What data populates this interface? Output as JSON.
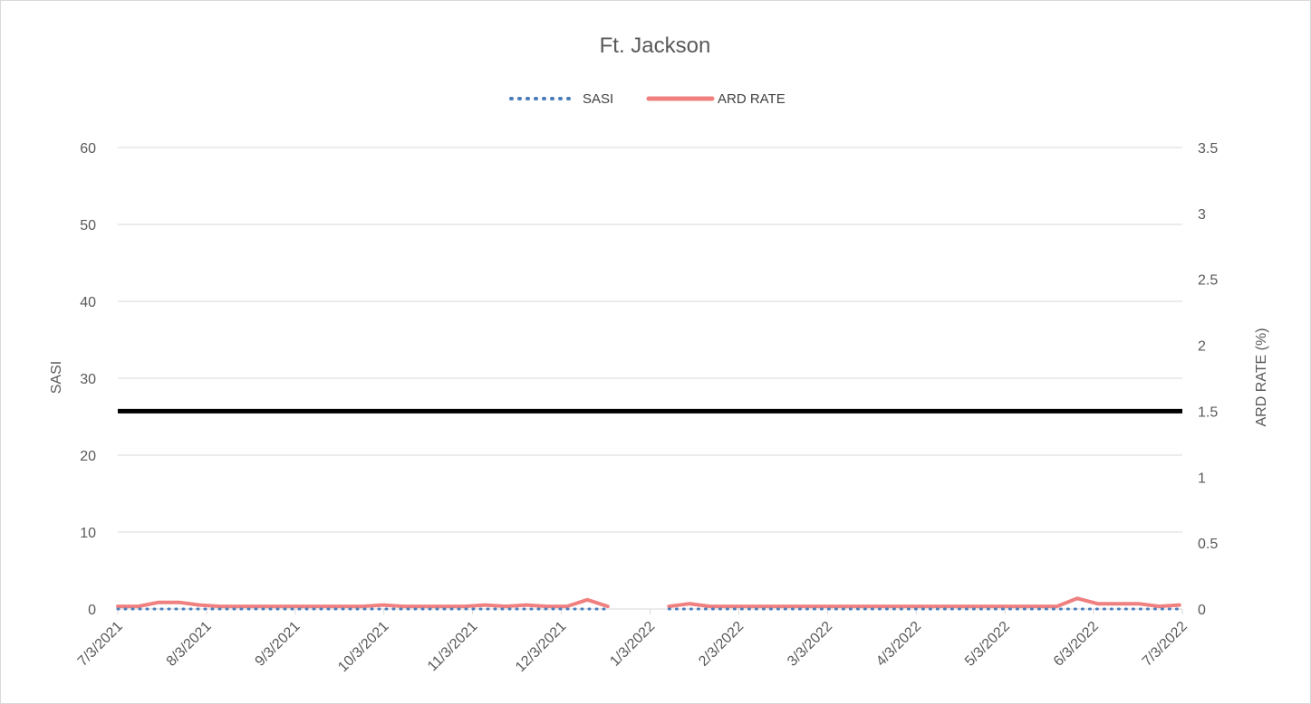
{
  "chart_data": {
    "type": "line",
    "title": "Ft. Jackson",
    "legend_position": "top-center",
    "grid": true,
    "xlabel": "",
    "x_tick_labels": [
      "7/3/2021",
      "8/3/2021",
      "9/3/2021",
      "10/3/2021",
      "11/3/2021",
      "12/3/2021",
      "1/3/2022",
      "2/3/2022",
      "3/3/2022",
      "4/3/2022",
      "5/3/2022",
      "6/3/2022",
      "7/3/2022"
    ],
    "x_range": [
      "2021-07-03",
      "2022-07-03"
    ],
    "y_left": {
      "label": "SASI",
      "range": [
        0,
        60
      ],
      "ticks": [
        0,
        10,
        20,
        30,
        40,
        50,
        60
      ]
    },
    "y_right": {
      "label": "ARD RATE (%)",
      "range": [
        0,
        3.5
      ],
      "ticks": [
        "0",
        "0.5",
        "1",
        "1.5",
        "2",
        "2.5",
        "3",
        "3.5"
      ]
    },
    "reference_line": {
      "axis": "right",
      "value": 1.5,
      "color": "#000000"
    },
    "series": [
      {
        "name": "SASI",
        "axis": "left",
        "style": "dotted",
        "color": "#4a7ebb",
        "points": [
          {
            "x": "2021-07-03",
            "y": 0
          },
          {
            "x": "2021-07-10",
            "y": 0
          },
          {
            "x": "2021-07-17",
            "y": 0
          },
          {
            "x": "2021-07-24",
            "y": 0
          },
          {
            "x": "2021-07-31",
            "y": 0
          },
          {
            "x": "2021-08-07",
            "y": 0
          },
          {
            "x": "2021-08-14",
            "y": 0
          },
          {
            "x": "2021-08-21",
            "y": 0
          },
          {
            "x": "2021-08-28",
            "y": 0
          },
          {
            "x": "2021-09-04",
            "y": 0
          },
          {
            "x": "2021-09-11",
            "y": 0
          },
          {
            "x": "2021-09-18",
            "y": 0
          },
          {
            "x": "2021-09-25",
            "y": 0
          },
          {
            "x": "2021-10-02",
            "y": 0
          },
          {
            "x": "2021-10-09",
            "y": 0
          },
          {
            "x": "2021-10-16",
            "y": 0
          },
          {
            "x": "2021-10-23",
            "y": 0
          },
          {
            "x": "2021-10-30",
            "y": 0
          },
          {
            "x": "2021-11-06",
            "y": 0
          },
          {
            "x": "2021-11-13",
            "y": 0
          },
          {
            "x": "2021-11-20",
            "y": 0
          },
          {
            "x": "2021-11-27",
            "y": 0
          },
          {
            "x": "2021-12-04",
            "y": 0
          },
          {
            "x": "2021-12-11",
            "y": 0
          },
          {
            "x": "2021-12-18",
            "y": 0
          },
          {
            "x": "2022-01-08",
            "y": 0
          },
          {
            "x": "2022-01-15",
            "y": 0
          },
          {
            "x": "2022-01-22",
            "y": 0
          },
          {
            "x": "2022-01-29",
            "y": 0
          },
          {
            "x": "2022-02-05",
            "y": 0
          },
          {
            "x": "2022-02-12",
            "y": 0
          },
          {
            "x": "2022-02-19",
            "y": 0
          },
          {
            "x": "2022-02-26",
            "y": 0
          },
          {
            "x": "2022-03-05",
            "y": 0
          },
          {
            "x": "2022-03-12",
            "y": 0
          },
          {
            "x": "2022-03-19",
            "y": 0
          },
          {
            "x": "2022-03-26",
            "y": 0
          },
          {
            "x": "2022-04-02",
            "y": 0
          },
          {
            "x": "2022-04-09",
            "y": 0
          },
          {
            "x": "2022-04-16",
            "y": 0
          },
          {
            "x": "2022-04-23",
            "y": 0
          },
          {
            "x": "2022-04-30",
            "y": 0
          },
          {
            "x": "2022-05-07",
            "y": 0
          },
          {
            "x": "2022-05-14",
            "y": 0
          },
          {
            "x": "2022-05-21",
            "y": 0
          },
          {
            "x": "2022-05-28",
            "y": 0
          },
          {
            "x": "2022-06-04",
            "y": 0
          },
          {
            "x": "2022-06-11",
            "y": 0
          },
          {
            "x": "2022-06-18",
            "y": 0
          },
          {
            "x": "2022-06-25",
            "y": 0
          },
          {
            "x": "2022-07-02",
            "y": 0
          }
        ]
      },
      {
        "name": "ARD RATE",
        "axis": "right",
        "style": "solid",
        "color": "#f08080",
        "points": [
          {
            "x": "2021-07-03",
            "y": 0.02
          },
          {
            "x": "2021-07-10",
            "y": 0.02
          },
          {
            "x": "2021-07-17",
            "y": 0.05
          },
          {
            "x": "2021-07-24",
            "y": 0.05
          },
          {
            "x": "2021-07-31",
            "y": 0.03
          },
          {
            "x": "2021-08-07",
            "y": 0.02
          },
          {
            "x": "2021-08-14",
            "y": 0.02
          },
          {
            "x": "2021-08-21",
            "y": 0.02
          },
          {
            "x": "2021-08-28",
            "y": 0.02
          },
          {
            "x": "2021-09-04",
            "y": 0.02
          },
          {
            "x": "2021-09-11",
            "y": 0.02
          },
          {
            "x": "2021-09-18",
            "y": 0.02
          },
          {
            "x": "2021-09-25",
            "y": 0.02
          },
          {
            "x": "2021-10-02",
            "y": 0.03
          },
          {
            "x": "2021-10-09",
            "y": 0.02
          },
          {
            "x": "2021-10-16",
            "y": 0.02
          },
          {
            "x": "2021-10-23",
            "y": 0.02
          },
          {
            "x": "2021-10-30",
            "y": 0.02
          },
          {
            "x": "2021-11-06",
            "y": 0.03
          },
          {
            "x": "2021-11-13",
            "y": 0.02
          },
          {
            "x": "2021-11-20",
            "y": 0.03
          },
          {
            "x": "2021-11-27",
            "y": 0.02
          },
          {
            "x": "2021-12-04",
            "y": 0.02
          },
          {
            "x": "2021-12-11",
            "y": 0.07
          },
          {
            "x": "2021-12-18",
            "y": 0.02
          },
          {
            "x": "2022-01-08",
            "y": 0.02
          },
          {
            "x": "2022-01-15",
            "y": 0.04
          },
          {
            "x": "2022-01-22",
            "y": 0.02
          },
          {
            "x": "2022-01-29",
            "y": 0.02
          },
          {
            "x": "2022-02-05",
            "y": 0.02
          },
          {
            "x": "2022-02-12",
            "y": 0.02
          },
          {
            "x": "2022-02-19",
            "y": 0.02
          },
          {
            "x": "2022-02-26",
            "y": 0.02
          },
          {
            "x": "2022-03-05",
            "y": 0.02
          },
          {
            "x": "2022-03-12",
            "y": 0.02
          },
          {
            "x": "2022-03-19",
            "y": 0.02
          },
          {
            "x": "2022-03-26",
            "y": 0.02
          },
          {
            "x": "2022-04-02",
            "y": 0.02
          },
          {
            "x": "2022-04-09",
            "y": 0.02
          },
          {
            "x": "2022-04-16",
            "y": 0.02
          },
          {
            "x": "2022-04-23",
            "y": 0.02
          },
          {
            "x": "2022-04-30",
            "y": 0.02
          },
          {
            "x": "2022-05-07",
            "y": 0.02
          },
          {
            "x": "2022-05-14",
            "y": 0.02
          },
          {
            "x": "2022-05-21",
            "y": 0.02
          },
          {
            "x": "2022-05-28",
            "y": 0.08
          },
          {
            "x": "2022-06-04",
            "y": 0.04
          },
          {
            "x": "2022-06-11",
            "y": 0.04
          },
          {
            "x": "2022-06-18",
            "y": 0.04
          },
          {
            "x": "2022-06-25",
            "y": 0.02
          },
          {
            "x": "2022-07-02",
            "y": 0.03
          }
        ]
      }
    ]
  }
}
